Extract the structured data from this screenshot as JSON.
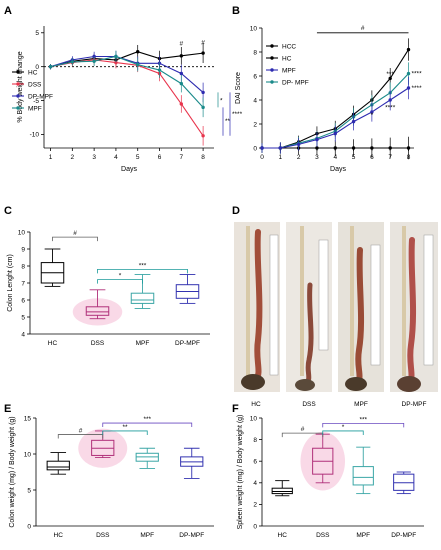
{
  "colors": {
    "HC": "#000000",
    "HCC": "#000000",
    "DSS": "#e8344c",
    "DP-MPF": "#2d2bb0",
    "MPF": "#1a8a8a",
    "box_HC": "#000000",
    "box_DSS": "#b0307a",
    "box_MPF": "#3aa6a6",
    "box_DPMPF": "#3232b0",
    "sig_gray": "#606060",
    "sig_teal": "#1a9a9a",
    "sig_blue": "#4040c0",
    "sig_purple": "#6a4ac0",
    "fill_pink": "#f6c9dd"
  },
  "panels": {
    "A": {
      "label": "A"
    },
    "B": {
      "label": "B"
    },
    "C": {
      "label": "C"
    },
    "D": {
      "label": "D",
      "photo_labels": [
        "HC",
        "DSS",
        "MPF",
        "DP-MPF"
      ]
    },
    "E": {
      "label": "E"
    },
    "F": {
      "label": "F"
    }
  },
  "chart_data": [
    {
      "id": "A",
      "type": "line",
      "xlabel": "Days",
      "ylabel": "% Body weight change",
      "x": [
        1,
        2,
        3,
        4,
        5,
        6,
        7,
        8
      ],
      "xticks": [
        "1",
        "2",
        "3",
        "4",
        "5",
        "6",
        "7",
        "8"
      ],
      "ylim": [
        -12,
        6
      ],
      "yticks": [
        "-10",
        "-5",
        "0",
        "5"
      ],
      "series": [
        {
          "name": "HC",
          "values": [
            0,
            0.8,
            1.2,
            1.0,
            2.2,
            1.2,
            1.6,
            2.0
          ]
        },
        {
          "name": "DSS",
          "values": [
            0,
            0.6,
            1.0,
            0.6,
            0.2,
            -1.0,
            -5.5,
            -10.2
          ]
        },
        {
          "name": "DP-MPF",
          "values": [
            0,
            1.0,
            1.5,
            1.5,
            0.5,
            0.5,
            -1.0,
            -3.8
          ]
        },
        {
          "name": "MPF",
          "values": [
            0,
            0.7,
            0.8,
            1.5,
            0.3,
            -0.5,
            -2.5,
            -6.0
          ]
        }
      ],
      "reference_line": 0,
      "annotations": [
        "#",
        "#",
        "*",
        "**",
        "****"
      ],
      "legend_position": "left"
    },
    {
      "id": "B",
      "type": "line",
      "xlabel": "Days",
      "ylabel": "DAI Score",
      "x": [
        0,
        1,
        2,
        3,
        4,
        5,
        6,
        7,
        8
      ],
      "xticks": [
        "0",
        "1",
        "2",
        "3",
        "4",
        "5",
        "6",
        "7",
        "8"
      ],
      "ylim": [
        0,
        10
      ],
      "yticks": [
        "0",
        "2",
        "4",
        "6",
        "8",
        "10"
      ],
      "series": [
        {
          "name": "HCC",
          "values": [
            0,
            0,
            0,
            0,
            0,
            0,
            0,
            0,
            0
          ]
        },
        {
          "name": "HC",
          "values": [
            0,
            0,
            0.5,
            1.2,
            1.6,
            2.8,
            4.0,
            5.8,
            8.2
          ]
        },
        {
          "name": "MPF",
          "values": [
            0,
            0,
            0.4,
            0.8,
            1.4,
            2.6,
            3.6,
            4.6,
            6.2
          ]
        },
        {
          "name": "DP- MPF",
          "values": [
            0,
            0,
            0.3,
            0.7,
            1.2,
            2.2,
            3.0,
            4.0,
            5.0
          ]
        }
      ],
      "annotations": [
        "#",
        "*",
        "***",
        "****",
        "****",
        "****"
      ],
      "legend_position": "top-left"
    },
    {
      "id": "C",
      "type": "box",
      "ylabel": "Colon Lenght (cm)",
      "categories": [
        "HC",
        "DSS",
        "MPF",
        "DP-MPF"
      ],
      "ylim": [
        4,
        10
      ],
      "yticks": [
        "4",
        "5",
        "6",
        "7",
        "8",
        "9",
        "10"
      ],
      "boxes": [
        {
          "min": 6.8,
          "q1": 7.0,
          "median": 7.6,
          "q3": 8.2,
          "max": 9.0
        },
        {
          "min": 4.9,
          "q1": 5.1,
          "median": 5.3,
          "q3": 5.6,
          "max": 6.6
        },
        {
          "min": 5.5,
          "q1": 5.8,
          "median": 6.0,
          "q3": 6.4,
          "max": 7.5
        },
        {
          "min": 5.8,
          "q1": 6.1,
          "median": 6.5,
          "q3": 6.9,
          "max": 7.5
        }
      ],
      "annotations": [
        "#",
        "***",
        "*"
      ]
    },
    {
      "id": "E",
      "type": "box",
      "ylabel": "Colon weight (mg) / Body weight (g)",
      "categories": [
        "HC",
        "DSS",
        "MPF",
        "DP-MPF"
      ],
      "ylim": [
        0,
        15
      ],
      "yticks": [
        "0",
        "5",
        "10",
        "15"
      ],
      "boxes": [
        {
          "min": 7.2,
          "q1": 7.8,
          "median": 8.2,
          "q3": 9.0,
          "max": 10.2
        },
        {
          "min": 9.5,
          "q1": 9.8,
          "median": 10.8,
          "q3": 11.9,
          "max": 13.2
        },
        {
          "min": 8.0,
          "q1": 9.0,
          "median": 9.6,
          "q3": 10.1,
          "max": 10.8
        },
        {
          "min": 6.6,
          "q1": 8.3,
          "median": 8.9,
          "q3": 9.6,
          "max": 10.8
        }
      ],
      "annotations": [
        "#",
        "**",
        "***"
      ]
    },
    {
      "id": "F",
      "type": "box",
      "ylabel": "Spleen weight (mg) / Body weight (g)",
      "categories": [
        "HC",
        "DSS",
        "MPF",
        "DP-MPF"
      ],
      "ylim": [
        0,
        10
      ],
      "yticks": [
        "0",
        "2",
        "4",
        "6",
        "8",
        "10"
      ],
      "boxes": [
        {
          "min": 2.8,
          "q1": 3.0,
          "median": 3.2,
          "q3": 3.5,
          "max": 4.2
        },
        {
          "min": 4.0,
          "q1": 4.8,
          "median": 6.0,
          "q3": 7.2,
          "max": 8.5
        },
        {
          "min": 3.0,
          "q1": 3.8,
          "median": 4.5,
          "q3": 5.5,
          "max": 7.3
        },
        {
          "min": 3.0,
          "q1": 3.3,
          "median": 4.0,
          "q3": 4.8,
          "max": 5.0
        }
      ],
      "annotations": [
        "#",
        "*",
        "***"
      ]
    }
  ]
}
